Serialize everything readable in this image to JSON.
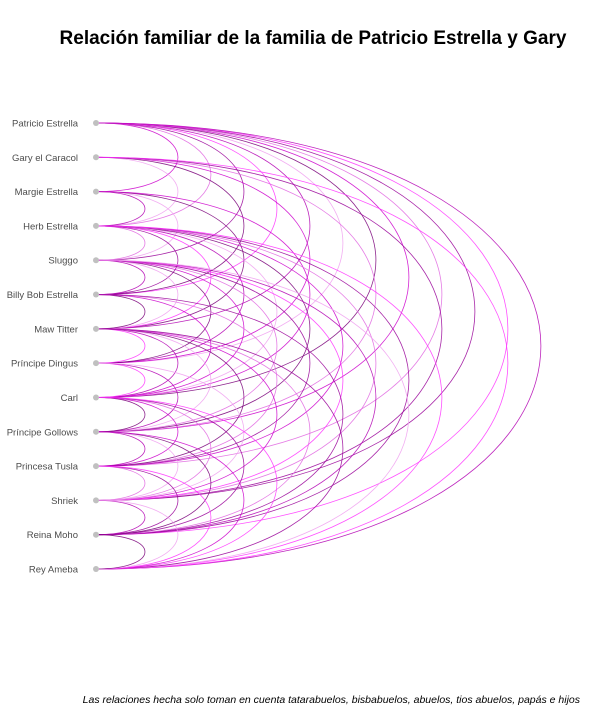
{
  "title": "Relación familiar de la familia de Patricio Estrella y Gary",
  "caption": "Las relaciones hecha solo toman en cuenta tatarabuelos, bisbabuelos, abuelos, tios abuelos, papás e hijos",
  "colors": {
    "node": "#c0c0c0",
    "label": "#4d4d4d",
    "arc_palette": [
      "#cc00cc",
      "#e066e0",
      "#990099",
      "#ff33ff",
      "#b300b3",
      "#f0a0f0",
      "#7a007a"
    ]
  },
  "chart_data": {
    "type": "arc-diagram",
    "nodes": [
      "Patricio Estrella",
      "Gary el Caracol",
      "Margie Estrella",
      "Herb Estrella",
      "Sluggo",
      "Billy Bob Estrella",
      "Maw Titter",
      "Príncipe Dingus",
      "Carl",
      "Príncipe Gollows",
      "Princesa Tusla",
      "Shriek",
      "Reina Moho",
      "Rey Ameba"
    ],
    "edges": [
      [
        0,
        2
      ],
      [
        0,
        3
      ],
      [
        0,
        4
      ],
      [
        0,
        5
      ],
      [
        0,
        6
      ],
      [
        0,
        7
      ],
      [
        0,
        8
      ],
      [
        0,
        9
      ],
      [
        0,
        10
      ],
      [
        0,
        11
      ],
      [
        0,
        12
      ],
      [
        0,
        13
      ],
      [
        1,
        3
      ],
      [
        1,
        5
      ],
      [
        1,
        7
      ],
      [
        1,
        9
      ],
      [
        1,
        11
      ],
      [
        1,
        13
      ],
      [
        2,
        3
      ],
      [
        2,
        4
      ],
      [
        2,
        6
      ],
      [
        2,
        8
      ],
      [
        3,
        4
      ],
      [
        3,
        5
      ],
      [
        3,
        6
      ],
      [
        3,
        7
      ],
      [
        3,
        8
      ],
      [
        3,
        9
      ],
      [
        3,
        10
      ],
      [
        3,
        11
      ],
      [
        3,
        12
      ],
      [
        3,
        13
      ],
      [
        4,
        5
      ],
      [
        4,
        6
      ],
      [
        4,
        7
      ],
      [
        4,
        8
      ],
      [
        4,
        9
      ],
      [
        4,
        10
      ],
      [
        4,
        11
      ],
      [
        4,
        12
      ],
      [
        4,
        13
      ],
      [
        5,
        6
      ],
      [
        5,
        8
      ],
      [
        5,
        10
      ],
      [
        5,
        12
      ],
      [
        6,
        7
      ],
      [
        6,
        8
      ],
      [
        6,
        9
      ],
      [
        6,
        10
      ],
      [
        6,
        11
      ],
      [
        6,
        12
      ],
      [
        6,
        13
      ],
      [
        7,
        8
      ],
      [
        7,
        9
      ],
      [
        7,
        11
      ],
      [
        8,
        9
      ],
      [
        8,
        10
      ],
      [
        8,
        11
      ],
      [
        8,
        12
      ],
      [
        8,
        13
      ],
      [
        9,
        10
      ],
      [
        9,
        11
      ],
      [
        9,
        12
      ],
      [
        9,
        13
      ],
      [
        10,
        11
      ],
      [
        10,
        12
      ],
      [
        10,
        13
      ],
      [
        11,
        12
      ],
      [
        11,
        13
      ],
      [
        12,
        13
      ]
    ]
  }
}
